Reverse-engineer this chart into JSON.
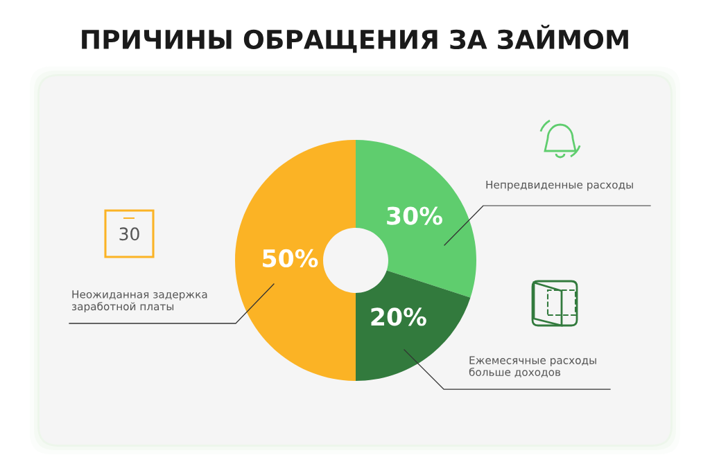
{
  "chart_data": {
    "type": "donut",
    "title": "ПРИЧИНЫ ОБРАЩЕНИЯ ЗА ЗАЙМОМ",
    "categories": [
      "Непредвиденные расходы",
      "Ежемесячные расходы\nбольше доходов",
      "Неожиданная задержка\nзаработной платы"
    ],
    "values": [
      30,
      20,
      50
    ],
    "value_labels": [
      "30%",
      "20%",
      "50%"
    ],
    "colors": [
      "#5fcd6e",
      "#327a3d",
      "#fbb325"
    ],
    "annotations": [
      "30"
    ]
  }
}
